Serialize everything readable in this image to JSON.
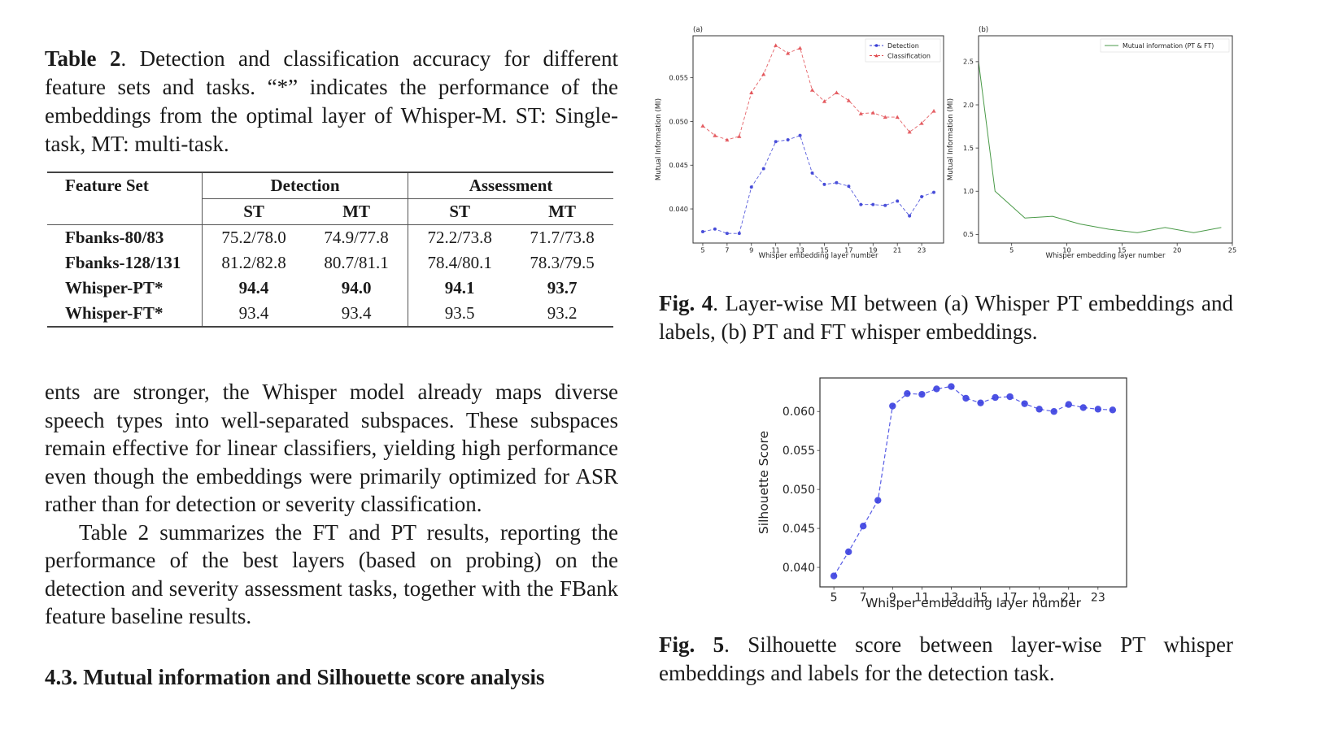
{
  "table_caption": {
    "label": "Table 2",
    "text": ".  Detection and classification accuracy for different feature sets and tasks. “*” indicates the performance of the embeddings from the optimal layer of Whisper-M. ST: Single-task, MT: multi-task."
  },
  "table": {
    "header_feature": "Feature Set",
    "group_headers": [
      "Detection",
      "Assessment"
    ],
    "sub_headers": [
      "ST",
      "MT",
      "ST",
      "MT"
    ],
    "rows": [
      {
        "name": "Fbanks-80/83",
        "values": [
          "75.2/78.0",
          "74.9/77.8",
          "72.2/73.8",
          "71.7/73.8"
        ],
        "bold": false
      },
      {
        "name": "Fbanks-128/131",
        "values": [
          "81.2/82.8",
          "80.7/81.1",
          "78.4/80.1",
          "78.3/79.5"
        ],
        "bold": false
      },
      {
        "name": "Whisper-PT*",
        "values": [
          "94.4",
          "94.0",
          "94.1",
          "93.7"
        ],
        "bold": true
      },
      {
        "name": "Whisper-FT*",
        "values": [
          "93.4",
          "93.4",
          "93.5",
          "93.2"
        ],
        "bold": false
      }
    ]
  },
  "body": {
    "paragraph1": "ents are stronger, the Whisper model already maps diverse speech types into well-separated subspaces. These subspaces remain effective for linear classifiers, yielding high performance even though the embeddings were primarily optimized for ASR rather than for detection or severity classification.",
    "paragraph2": "Table 2 summarizes the FT and PT results, reporting the performance of the best layers (based on probing) on the detection and severity assessment tasks, together with the FBank feature baseline results."
  },
  "section_heading": "4.3.  Mutual information and Silhouette score analysis",
  "fig4_caption": {
    "label": "Fig. 4",
    "text": ".  Layer-wise MI between (a) Whisper PT embeddings and labels, (b) PT and FT whisper embeddings."
  },
  "fig5_caption": {
    "label": "Fig. 5",
    "text": ".  Silhouette score between layer-wise PT whisper embeddings and labels for the detection task."
  },
  "colors": {
    "detection": "#3a3fd6",
    "classification": "#e0474c",
    "mi_line": "#4a9a48",
    "silhouette": "#3a3fe0"
  },
  "chart_data": [
    {
      "id": "fig4a",
      "type": "line",
      "panel_label": "(a)",
      "title": "",
      "xlabel": "Whisper embedding layer number",
      "ylabel": "Mutual Information (MI)",
      "xlim": [
        4.2,
        24.8
      ],
      "ylim": [
        0.0361,
        0.0598
      ],
      "xticks": [
        5,
        7,
        9,
        11,
        13,
        15,
        17,
        19,
        21,
        23
      ],
      "yticks": [
        0.04,
        0.045,
        0.05,
        0.055
      ],
      "ytick_labels": [
        "0.040",
        "0.045",
        "0.050",
        "0.055"
      ],
      "legend": "top-right",
      "grid": false,
      "x": [
        5,
        6,
        7,
        8,
        9,
        10,
        11,
        12,
        13,
        14,
        15,
        16,
        17,
        18,
        19,
        20,
        21,
        22,
        23,
        24
      ],
      "series": [
        {
          "name": "Detection",
          "style": "dashed",
          "marker": "circle",
          "values": [
            0.0374,
            0.0377,
            0.0372,
            0.0372,
            0.0425,
            0.0446,
            0.0477,
            0.0479,
            0.0484,
            0.0441,
            0.0428,
            0.043,
            0.0426,
            0.0405,
            0.0405,
            0.0404,
            0.0409,
            0.0392,
            0.0414,
            0.0419
          ]
        },
        {
          "name": "Classification",
          "style": "dashed",
          "marker": "triangle",
          "values": [
            0.0495,
            0.0484,
            0.0479,
            0.0483,
            0.0533,
            0.0554,
            0.0587,
            0.0578,
            0.0584,
            0.0536,
            0.0523,
            0.0533,
            0.0524,
            0.0509,
            0.051,
            0.0505,
            0.0505,
            0.0488,
            0.0498,
            0.0512
          ]
        }
      ]
    },
    {
      "id": "fig4b",
      "type": "line",
      "panel_label": "(b)",
      "title": "",
      "xlabel": "Whisper embedding layer number",
      "ylabel": "Mutual Information (MI)",
      "xlim": [
        2,
        25
      ],
      "ylim": [
        0.4,
        2.8
      ],
      "xticks": [
        5,
        10,
        15,
        20,
        25
      ],
      "yticks": [
        0.5,
        1.0,
        1.5,
        2.0,
        2.5
      ],
      "ytick_labels": [
        "0.5",
        "1.0",
        "1.5",
        "2.0",
        "2.5"
      ],
      "legend": "top-right",
      "grid": false,
      "x": [
        2,
        3.5,
        6.2,
        8.7,
        11.2,
        13.8,
        16.4,
        18.9,
        21.5,
        24
      ],
      "series": [
        {
          "name": "Mutual information (PT & FT)",
          "style": "solid",
          "marker": "none",
          "values": [
            2.5,
            1.0,
            0.69,
            0.71,
            0.62,
            0.56,
            0.52,
            0.58,
            0.52,
            0.58
          ]
        }
      ]
    },
    {
      "id": "fig5",
      "type": "line",
      "title": "",
      "xlabel": "Whisper embedding layer number",
      "ylabel": "Silhouette Score",
      "xlim": [
        4.05,
        24.95
      ],
      "ylim": [
        0.0375,
        0.0643
      ],
      "xticks": [
        5,
        7,
        9,
        11,
        13,
        15,
        17,
        19,
        21,
        23
      ],
      "yticks": [
        0.04,
        0.045,
        0.05,
        0.055,
        0.06
      ],
      "ytick_labels": [
        "0.040",
        "0.045",
        "0.050",
        "0.055",
        "0.060"
      ],
      "legend": "none",
      "grid": false,
      "x": [
        5,
        6,
        7,
        8,
        9,
        10,
        11,
        12,
        13,
        14,
        15,
        16,
        17,
        18,
        19,
        20,
        21,
        22,
        23,
        24
      ],
      "series": [
        {
          "name": "Silhouette Score",
          "style": "dashed",
          "marker": "circle",
          "values": [
            0.0389,
            0.042,
            0.0453,
            0.0486,
            0.0607,
            0.0623,
            0.0622,
            0.0629,
            0.0632,
            0.0617,
            0.0611,
            0.0618,
            0.0619,
            0.061,
            0.0603,
            0.06,
            0.0609,
            0.0605,
            0.0603,
            0.0602
          ]
        }
      ]
    }
  ]
}
